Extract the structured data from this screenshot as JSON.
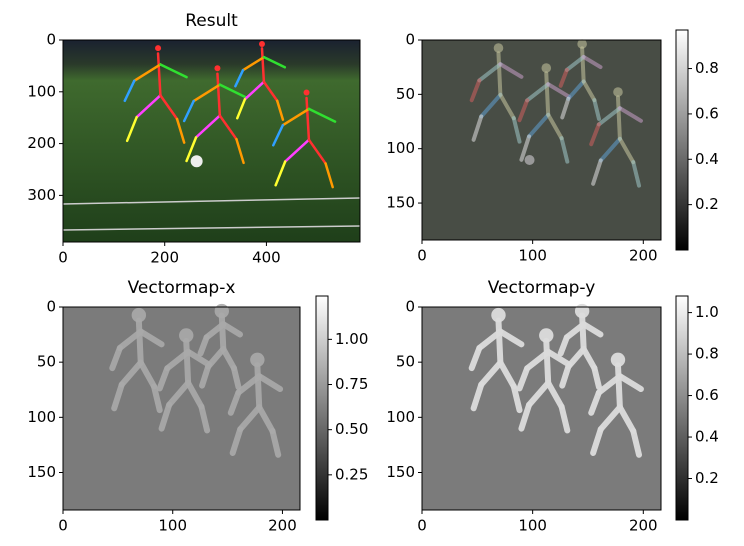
{
  "chart_data": [
    {
      "type": "image",
      "title": "Result",
      "xlim": [
        0,
        584
      ],
      "ylim": [
        390,
        0
      ],
      "xticks": [
        0,
        200,
        400
      ],
      "yticks": [
        0,
        100,
        200,
        300
      ]
    },
    {
      "type": "image",
      "xlim": [
        0,
        216
      ],
      "ylim": [
        184,
        0
      ],
      "xticks": [
        0,
        100,
        200
      ],
      "yticks": [
        0,
        50,
        100,
        150
      ],
      "colorbar": {
        "clim": [
          0,
          0.97
        ],
        "ticks": [
          0.2,
          0.4,
          0.6,
          0.8
        ],
        "cmap": "gray"
      }
    },
    {
      "type": "image",
      "title": "Vectormap-x",
      "xlim": [
        0,
        216
      ],
      "ylim": [
        184,
        0
      ],
      "xticks": [
        0,
        100,
        200
      ],
      "yticks": [
        0,
        50,
        100,
        150
      ],
      "colorbar": {
        "clim": [
          0,
          1.24
        ],
        "ticks": [
          {
            "value": 0.25,
            "label": "0.25"
          },
          {
            "value": 0.5,
            "label": "0.50"
          },
          {
            "value": 0.75,
            "label": "0.75"
          },
          {
            "value": 1,
            "label": "1.00"
          }
        ],
        "cmap": "gray"
      }
    },
    {
      "type": "image",
      "title": "Vectormap-y",
      "xlim": [
        0,
        216
      ],
      "ylim": [
        184,
        0
      ],
      "xticks": [
        0,
        100,
        200
      ],
      "yticks": [
        0,
        50,
        100,
        150
      ],
      "colorbar": {
        "clim": [
          0,
          1.08
        ],
        "ticks": [
          0.2,
          0.4,
          0.6,
          0.8,
          {
            "value": 1,
            "label": "1.0"
          }
        ],
        "cmap": "gray"
      }
    }
  ]
}
